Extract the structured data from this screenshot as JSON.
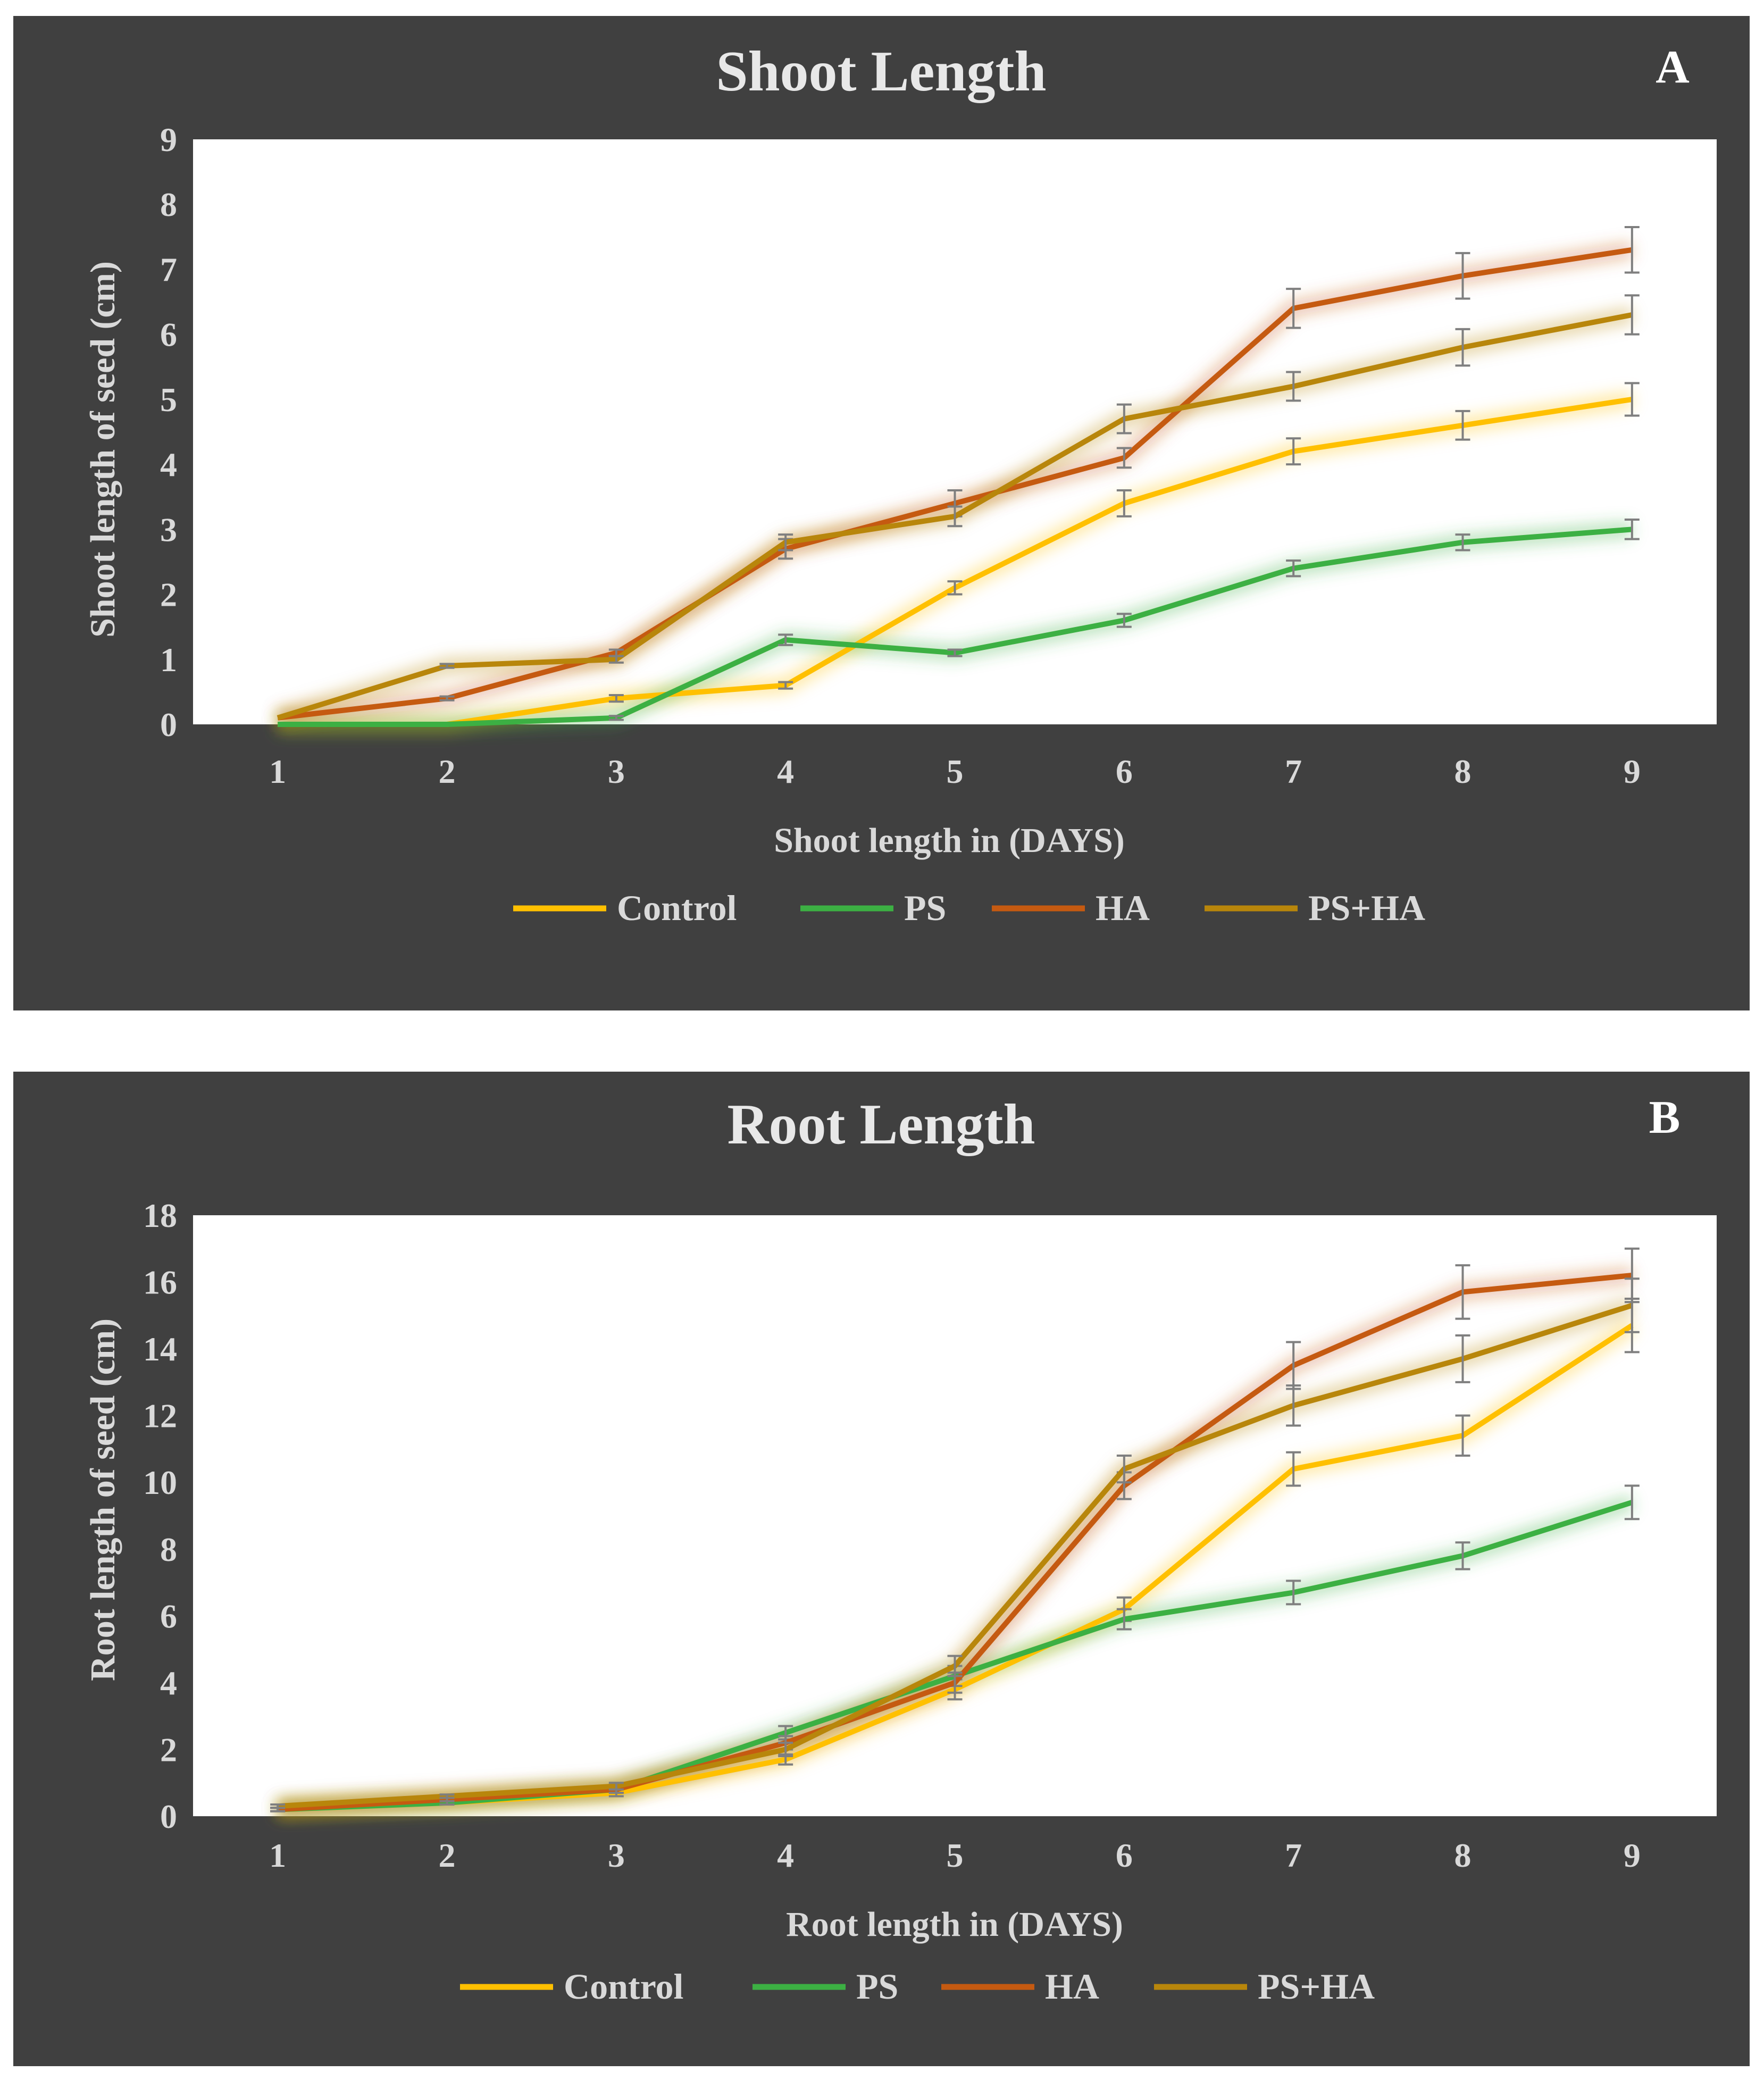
{
  "colors": {
    "panel_bg": "#404040",
    "plot_bg": "#ffffff",
    "Control": "#ffc000",
    "PS": "#3cb043",
    "HA": "#c55a11",
    "PS+HA": "#b8860b",
    "error_bar": "#7f7f7f"
  },
  "chart_data": [
    {
      "id": "A",
      "type": "line",
      "panel_label": "A",
      "title": "Shoot Length",
      "xlabel": "Shoot length in (DAYS)",
      "ylabel": "Shoot length of seed (cm)",
      "x": [
        1,
        2,
        3,
        4,
        5,
        6,
        7,
        8,
        9
      ],
      "ylim": [
        0,
        9
      ],
      "yticks": [
        0,
        1,
        2,
        3,
        4,
        5,
        6,
        7,
        8,
        9
      ],
      "grid": false,
      "legend_position": "bottom",
      "series": [
        {
          "name": "Control",
          "values": [
            0,
            0,
            0.4,
            0.6,
            2.1,
            3.4,
            4.2,
            4.6,
            5.0
          ],
          "errors": [
            0,
            0,
            0.05,
            0.05,
            0.1,
            0.2,
            0.2,
            0.22,
            0.25
          ]
        },
        {
          "name": "PS",
          "values": [
            0,
            0,
            0.1,
            1.3,
            1.1,
            1.6,
            2.4,
            2.8,
            3.0
          ],
          "errors": [
            0,
            0,
            0.03,
            0.08,
            0.05,
            0.1,
            0.12,
            0.12,
            0.15
          ]
        },
        {
          "name": "HA",
          "values": [
            0.1,
            0.4,
            1.1,
            2.7,
            3.4,
            4.1,
            6.4,
            6.9,
            7.3
          ],
          "errors": [
            0,
            0.03,
            0.05,
            0.15,
            0.2,
            0.15,
            0.3,
            0.35,
            0.35
          ]
        },
        {
          "name": "PS+HA",
          "values": [
            0.1,
            0.9,
            1.0,
            2.8,
            3.2,
            4.7,
            5.2,
            5.8,
            6.3
          ],
          "errors": [
            0,
            0.03,
            0.05,
            0.12,
            0.15,
            0.22,
            0.22,
            0.28,
            0.3
          ]
        }
      ]
    },
    {
      "id": "B",
      "type": "line",
      "panel_label": "B",
      "title": "Root Length",
      "xlabel": "Root length in (DAYS)",
      "ylabel": "Root length of seed (cm)",
      "x": [
        1,
        2,
        3,
        4,
        5,
        6,
        7,
        8,
        9
      ],
      "ylim": [
        0,
        18
      ],
      "yticks": [
        0,
        2,
        4,
        6,
        8,
        10,
        12,
        14,
        16,
        18
      ],
      "grid": false,
      "legend_position": "bottom",
      "series": [
        {
          "name": "Control",
          "values": [
            0.2,
            0.4,
            0.7,
            1.7,
            3.8,
            6.2,
            10.4,
            11.4,
            14.7
          ],
          "errors": [
            0.05,
            0.05,
            0.1,
            0.15,
            0.3,
            0.35,
            0.5,
            0.6,
            0.8
          ]
        },
        {
          "name": "PS",
          "values": [
            0.2,
            0.4,
            0.8,
            2.5,
            4.2,
            5.9,
            6.7,
            7.8,
            9.4
          ],
          "errors": [
            0.05,
            0.05,
            0.1,
            0.2,
            0.3,
            0.3,
            0.35,
            0.4,
            0.5
          ]
        },
        {
          "name": "HA",
          "values": [
            0.2,
            0.5,
            0.8,
            2.2,
            4.0,
            9.9,
            13.5,
            15.7,
            16.2
          ],
          "errors": [
            0.05,
            0.05,
            0.1,
            0.2,
            0.3,
            0.4,
            0.7,
            0.8,
            0.8
          ]
        },
        {
          "name": "PS+HA",
          "values": [
            0.3,
            0.6,
            0.9,
            2.0,
            4.5,
            10.4,
            12.3,
            13.7,
            15.3
          ],
          "errors": [
            0.05,
            0.05,
            0.1,
            0.2,
            0.3,
            0.4,
            0.6,
            0.7,
            0.8
          ]
        }
      ]
    }
  ]
}
